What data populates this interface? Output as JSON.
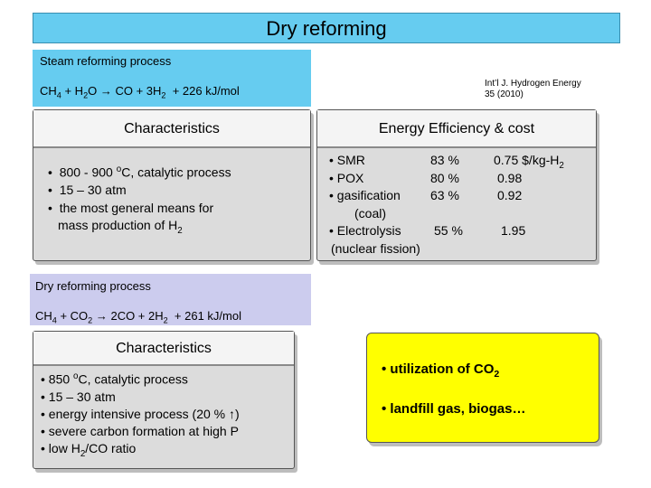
{
  "title": "Dry reforming",
  "steam": {
    "label": "Steam reforming process",
    "eq": {
      "a": "CH",
      "a_sub": "4",
      "b": " + H",
      "b_sub": "2",
      "c": "O",
      "arrow": " → ",
      "d": "CO + 3H",
      "d_sub": "2",
      "e": "  + 226 kJ/mol"
    }
  },
  "citation": {
    "line1": "Int’l J. Hydrogen Energy",
    "line2": "35 (2010)"
  },
  "char1": {
    "heading": "Characteristics",
    "b1_pre": "800 - 900 ",
    "b1_sup": "o",
    "b1_post": "C, catalytic process",
    "b2": "15 – 30 atm",
    "b3a": "the most general means for",
    "b3b_pre": "mass production of H",
    "b3b_sub": "2"
  },
  "energy": {
    "heading": "Energy Efficiency & cost",
    "rows": [
      {
        "name": "• SMR",
        "eff": "83 %",
        "cost_pre": "0.75 $/kg-H",
        "cost_sub": "2"
      },
      {
        "name": "• POX",
        "eff": "80 %",
        "cost": "0.98"
      },
      {
        "name": "• gasification",
        "eff": "63 %",
        "cost": "0.92"
      },
      {
        "name": "(coal)"
      },
      {
        "name": "• Electrolysis",
        "eff": "55 %",
        "cost": "1.95"
      },
      {
        "name": "(nuclear fission)"
      }
    ]
  },
  "dry": {
    "label": "Dry reforming process",
    "eq": {
      "a": "CH",
      "a_sub": "4",
      "b": " + CO",
      "b_sub": "2",
      "arrow": " → ",
      "c": "2CO + 2H",
      "c_sub": "2",
      "d": "  + 261 kJ/mol"
    }
  },
  "char2": {
    "heading": "Characteristics",
    "b1_pre": "• 850 ",
    "b1_sup": "o",
    "b1_post": "C, catalytic process",
    "b2": "• 15 – 30 atm",
    "b3": "• energy intensive process (20 % ↑)",
    "b4": "• severe carbon formation at high P",
    "b5_pre": "• low H",
    "b5_sub": "2",
    "b5_post": "/CO ratio"
  },
  "yellow": {
    "l1_pre": "• utilization of CO",
    "l1_sub": "2",
    "l2": "• landfill gas, biogas…"
  },
  "colors": {
    "title_bg": "#66ccf0",
    "steam_bg": "#66ccf0",
    "dry_bg": "#ccccee",
    "box_bg": "#dcdcdc",
    "highlight": "#ffff00"
  }
}
